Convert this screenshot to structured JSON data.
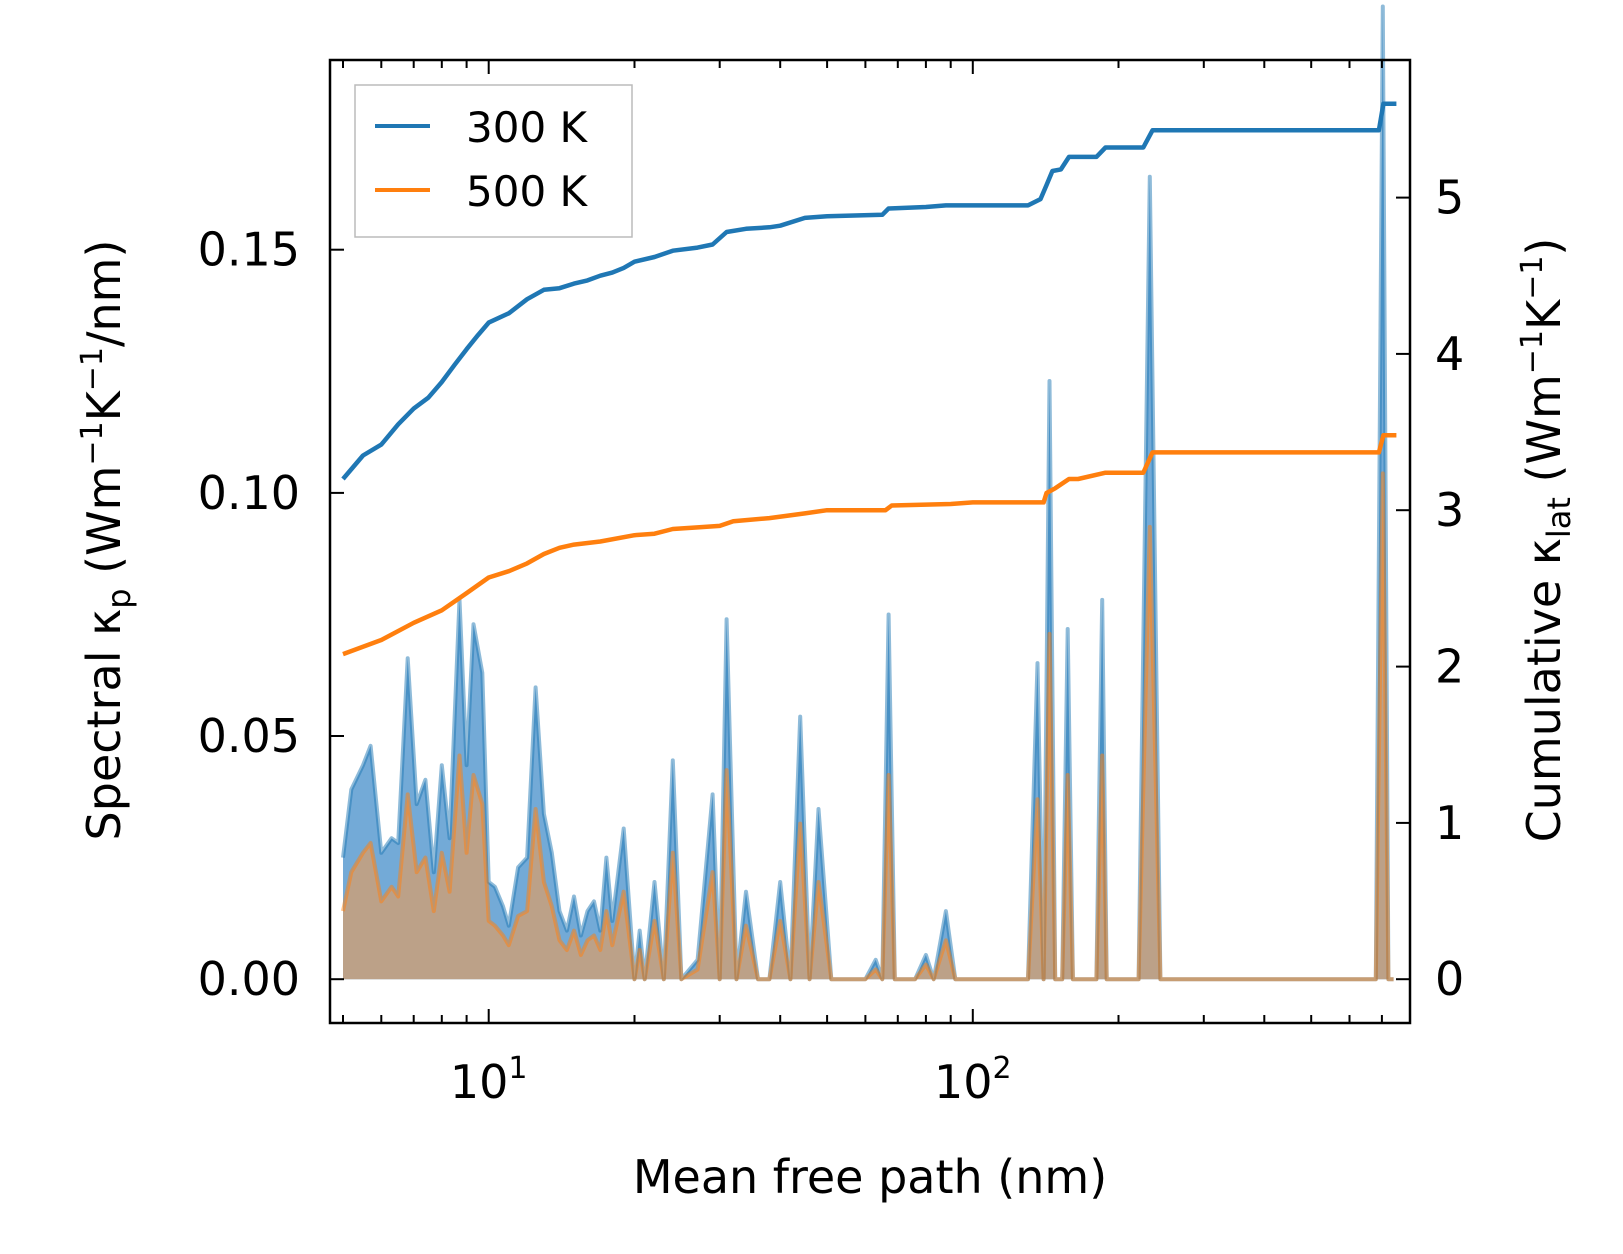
{
  "chart_data": {
    "type": "line",
    "xscale": "log",
    "xlabel": "Mean free path (nm)",
    "xlim": [
      4.7,
      800
    ],
    "x_ticks": [
      {
        "base": "10",
        "exp": "1",
        "value": 10
      },
      {
        "base": "10",
        "exp": "2",
        "value": 100
      }
    ],
    "left_axis": {
      "label": {
        "prefix": "Spectral κ",
        "sub": "p",
        "mid": " (Wm",
        "sup1": "−1",
        "mid2": "K",
        "sup2": "−1",
        "suffix": "/nm)"
      },
      "ylim": [
        -0.009,
        0.189
      ],
      "ticks": [
        {
          "value": 0.0,
          "label": "0.00"
        },
        {
          "value": 0.05,
          "label": "0.05"
        },
        {
          "value": 0.1,
          "label": "0.10"
        },
        {
          "value": 0.15,
          "label": "0.15"
        }
      ]
    },
    "right_axis": {
      "label": {
        "prefix": "Cumulative κ",
        "sub": "lat",
        "mid": " (Wm",
        "sup1": "−1",
        "mid2": "K",
        "sup2": "−1",
        "suffix": ")"
      },
      "ylim": [
        -0.28,
        5.88
      ],
      "ticks": [
        {
          "value": 0,
          "label": "0"
        },
        {
          "value": 1,
          "label": "1"
        },
        {
          "value": 2,
          "label": "2"
        },
        {
          "value": 3,
          "label": "3"
        },
        {
          "value": 4,
          "label": "4"
        },
        {
          "value": 5,
          "label": "5"
        }
      ]
    },
    "legend": {
      "position": "top-left",
      "entries": [
        "300 K",
        "500 K"
      ]
    },
    "series": [
      {
        "name": "300 K",
        "color": "#1f77b4",
        "fill_color": "#5b9bd0",
        "cumulative": [
          [
            5,
            3.2
          ],
          [
            5.5,
            3.35
          ],
          [
            6,
            3.42
          ],
          [
            6.5,
            3.55
          ],
          [
            7,
            3.65
          ],
          [
            7.5,
            3.72
          ],
          [
            8,
            3.82
          ],
          [
            8.5,
            3.93
          ],
          [
            9,
            4.03
          ],
          [
            9.5,
            4.12
          ],
          [
            10,
            4.2
          ],
          [
            11,
            4.26
          ],
          [
            12,
            4.35
          ],
          [
            13,
            4.41
          ],
          [
            14,
            4.42
          ],
          [
            15,
            4.45
          ],
          [
            16,
            4.47
          ],
          [
            17,
            4.5
          ],
          [
            18,
            4.52
          ],
          [
            19,
            4.55
          ],
          [
            20,
            4.59
          ],
          [
            22,
            4.62
          ],
          [
            24,
            4.66
          ],
          [
            27,
            4.68
          ],
          [
            29,
            4.7
          ],
          [
            31,
            4.78
          ],
          [
            34,
            4.8
          ],
          [
            38,
            4.81
          ],
          [
            40,
            4.82
          ],
          [
            45,
            4.87
          ],
          [
            50,
            4.88
          ],
          [
            65,
            4.89
          ],
          [
            67,
            4.93
          ],
          [
            80,
            4.94
          ],
          [
            88,
            4.95
          ],
          [
            100,
            4.95
          ],
          [
            130,
            4.95
          ],
          [
            138,
            4.99
          ],
          [
            142,
            5.08
          ],
          [
            146,
            5.17
          ],
          [
            152,
            5.18
          ],
          [
            158,
            5.26
          ],
          [
            180,
            5.26
          ],
          [
            188,
            5.32
          ],
          [
            225,
            5.32
          ],
          [
            235,
            5.43
          ],
          [
            400,
            5.43
          ],
          [
            690,
            5.43
          ],
          [
            705,
            5.6
          ],
          [
            750,
            5.6
          ]
        ],
        "spectral": [
          [
            5,
            0.025
          ],
          [
            5.2,
            0.039
          ],
          [
            5.5,
            0.044
          ],
          [
            5.7,
            0.048
          ],
          [
            6,
            0.026
          ],
          [
            6.3,
            0.029
          ],
          [
            6.5,
            0.028
          ],
          [
            6.8,
            0.066
          ],
          [
            7.1,
            0.036
          ],
          [
            7.4,
            0.041
          ],
          [
            7.7,
            0.022
          ],
          [
            8,
            0.044
          ],
          [
            8.3,
            0.029
          ],
          [
            8.7,
            0.078
          ],
          [
            9,
            0.044
          ],
          [
            9.3,
            0.073
          ],
          [
            9.7,
            0.063
          ],
          [
            10,
            0.02
          ],
          [
            10.3,
            0.019
          ],
          [
            10.7,
            0.015
          ],
          [
            11,
            0.011
          ],
          [
            11.5,
            0.023
          ],
          [
            12,
            0.025
          ],
          [
            12.5,
            0.06
          ],
          [
            13,
            0.034
          ],
          [
            13.5,
            0.026
          ],
          [
            14,
            0.014
          ],
          [
            14.5,
            0.01
          ],
          [
            15,
            0.017
          ],
          [
            15.5,
            0.009
          ],
          [
            16,
            0.014
          ],
          [
            16.5,
            0.016
          ],
          [
            17,
            0.01
          ],
          [
            17.5,
            0.025
          ],
          [
            18,
            0.012
          ],
          [
            19,
            0.031
          ],
          [
            20,
            0.0
          ],
          [
            20.5,
            0.01
          ],
          [
            21,
            0.0
          ],
          [
            22,
            0.02
          ],
          [
            23,
            0.0
          ],
          [
            24,
            0.045
          ],
          [
            25,
            0.0
          ],
          [
            27,
            0.004
          ],
          [
            29,
            0.038
          ],
          [
            30,
            0.0
          ],
          [
            31,
            0.074
          ],
          [
            32.5,
            0.0
          ],
          [
            34,
            0.018
          ],
          [
            36,
            0.0
          ],
          [
            38,
            0.0
          ],
          [
            40,
            0.02
          ],
          [
            42,
            0.0
          ],
          [
            44,
            0.054
          ],
          [
            46,
            0.0
          ],
          [
            48,
            0.035
          ],
          [
            51,
            0.0
          ],
          [
            60,
            0.0
          ],
          [
            63,
            0.004
          ],
          [
            65,
            0.0
          ],
          [
            67,
            0.075
          ],
          [
            69,
            0.0
          ],
          [
            76,
            0.0
          ],
          [
            80,
            0.005
          ],
          [
            83,
            0.0
          ],
          [
            88,
            0.014
          ],
          [
            92,
            0.0
          ],
          [
            130,
            0.0
          ],
          [
            136,
            0.065
          ],
          [
            140,
            0.0
          ],
          [
            144,
            0.123
          ],
          [
            148,
            0.0
          ],
          [
            153,
            0.0
          ],
          [
            157,
            0.072
          ],
          [
            161,
            0.0
          ],
          [
            180,
            0.0
          ],
          [
            185,
            0.078
          ],
          [
            189,
            0.0
          ],
          [
            220,
            0.0
          ],
          [
            232,
            0.165
          ],
          [
            244,
            0.0
          ],
          [
            680,
            0.0
          ],
          [
            703,
            0.2
          ],
          [
            722,
            0.0
          ],
          [
            740,
            0.0
          ]
        ]
      },
      {
        "name": "500 K",
        "color": "#ff7f0e",
        "fill_color": "#c9a07a",
        "cumulative": [
          [
            5,
            2.08
          ],
          [
            6,
            2.17
          ],
          [
            7,
            2.28
          ],
          [
            8,
            2.36
          ],
          [
            9,
            2.47
          ],
          [
            10,
            2.57
          ],
          [
            11,
            2.61
          ],
          [
            12,
            2.66
          ],
          [
            13,
            2.72
          ],
          [
            14,
            2.76
          ],
          [
            15,
            2.78
          ],
          [
            17,
            2.8
          ],
          [
            20,
            2.84
          ],
          [
            22,
            2.85
          ],
          [
            24,
            2.88
          ],
          [
            27,
            2.89
          ],
          [
            30,
            2.9
          ],
          [
            32,
            2.93
          ],
          [
            38,
            2.95
          ],
          [
            45,
            2.98
          ],
          [
            50,
            3.0
          ],
          [
            66,
            3.0
          ],
          [
            68,
            3.03
          ],
          [
            90,
            3.04
          ],
          [
            100,
            3.05
          ],
          [
            140,
            3.05
          ],
          [
            142,
            3.11
          ],
          [
            148,
            3.14
          ],
          [
            158,
            3.2
          ],
          [
            165,
            3.2
          ],
          [
            188,
            3.24
          ],
          [
            225,
            3.24
          ],
          [
            235,
            3.37
          ],
          [
            690,
            3.37
          ],
          [
            705,
            3.48
          ],
          [
            750,
            3.48
          ]
        ],
        "spectral": [
          [
            5,
            0.014
          ],
          [
            5.2,
            0.022
          ],
          [
            5.5,
            0.026
          ],
          [
            5.7,
            0.028
          ],
          [
            6,
            0.016
          ],
          [
            6.3,
            0.019
          ],
          [
            6.5,
            0.017
          ],
          [
            6.8,
            0.038
          ],
          [
            7.1,
            0.022
          ],
          [
            7.4,
            0.025
          ],
          [
            7.7,
            0.014
          ],
          [
            8,
            0.026
          ],
          [
            8.3,
            0.018
          ],
          [
            8.7,
            0.046
          ],
          [
            9,
            0.026
          ],
          [
            9.3,
            0.042
          ],
          [
            9.7,
            0.036
          ],
          [
            10,
            0.012
          ],
          [
            10.3,
            0.011
          ],
          [
            10.7,
            0.009
          ],
          [
            11,
            0.007
          ],
          [
            11.5,
            0.013
          ],
          [
            12,
            0.014
          ],
          [
            12.5,
            0.035
          ],
          [
            13,
            0.02
          ],
          [
            13.5,
            0.015
          ],
          [
            14,
            0.008
          ],
          [
            14.5,
            0.006
          ],
          [
            15,
            0.01
          ],
          [
            15.5,
            0.005
          ],
          [
            16,
            0.008
          ],
          [
            16.5,
            0.009
          ],
          [
            17,
            0.006
          ],
          [
            17.5,
            0.014
          ],
          [
            18,
            0.007
          ],
          [
            19,
            0.018
          ],
          [
            20,
            0.0
          ],
          [
            20.5,
            0.006
          ],
          [
            21,
            0.0
          ],
          [
            22,
            0.012
          ],
          [
            23,
            0.0
          ],
          [
            24,
            0.026
          ],
          [
            25,
            0.0
          ],
          [
            27,
            0.002
          ],
          [
            29,
            0.022
          ],
          [
            30,
            0.0
          ],
          [
            31,
            0.043
          ],
          [
            32.5,
            0.0
          ],
          [
            34,
            0.011
          ],
          [
            36,
            0.0
          ],
          [
            38,
            0.0
          ],
          [
            40,
            0.012
          ],
          [
            42,
            0.0
          ],
          [
            44,
            0.032
          ],
          [
            46,
            0.0
          ],
          [
            48,
            0.02
          ],
          [
            51,
            0.0
          ],
          [
            60,
            0.0
          ],
          [
            63,
            0.002
          ],
          [
            65,
            0.0
          ],
          [
            67,
            0.042
          ],
          [
            69,
            0.0
          ],
          [
            76,
            0.0
          ],
          [
            80,
            0.003
          ],
          [
            83,
            0.0
          ],
          [
            88,
            0.008
          ],
          [
            92,
            0.0
          ],
          [
            130,
            0.0
          ],
          [
            136,
            0.037
          ],
          [
            140,
            0.0
          ],
          [
            144,
            0.071
          ],
          [
            148,
            0.0
          ],
          [
            153,
            0.0
          ],
          [
            157,
            0.042
          ],
          [
            161,
            0.0
          ],
          [
            180,
            0.0
          ],
          [
            185,
            0.046
          ],
          [
            189,
            0.0
          ],
          [
            220,
            0.0
          ],
          [
            232,
            0.093
          ],
          [
            244,
            0.0
          ],
          [
            680,
            0.0
          ],
          [
            703,
            0.104
          ],
          [
            722,
            0.0
          ],
          [
            740,
            0.0
          ]
        ]
      }
    ]
  }
}
